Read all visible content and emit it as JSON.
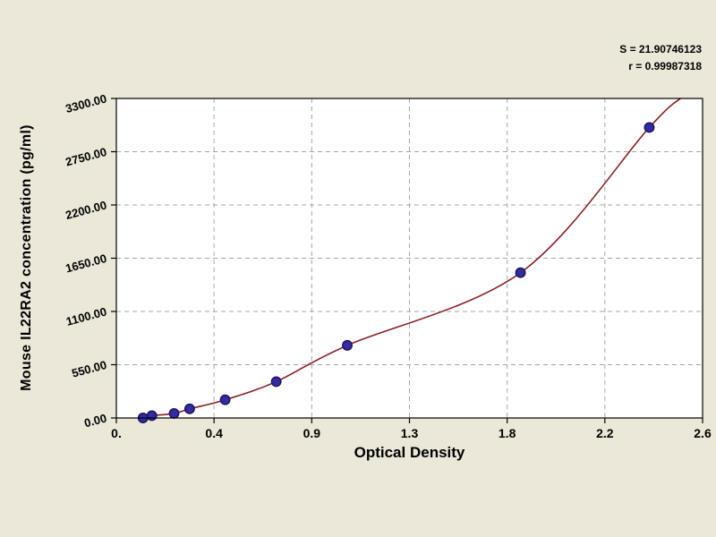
{
  "window": {
    "background_color": "#ebe8d9"
  },
  "chart_data": {
    "type": "scatter",
    "title": "",
    "xlabel": "Optical Density",
    "ylabel": "Mouse IL22RA2 concentration (pg/ml)",
    "annotations": {
      "s_value": "S = 21.90746123",
      "r_value": "r = 0.99987318"
    },
    "xlim": [
      0,
      2.64
    ],
    "ylim": [
      0,
      3300
    ],
    "x_ticks": [
      {
        "value": 0,
        "label": "0."
      },
      {
        "value": 0.44,
        "label": "0.4"
      },
      {
        "value": 0.88,
        "label": "0.9"
      },
      {
        "value": 1.32,
        "label": "1.3"
      },
      {
        "value": 1.76,
        "label": "1.8"
      },
      {
        "value": 2.2,
        "label": "2.2"
      },
      {
        "value": 2.64,
        "label": "2.6"
      }
    ],
    "y_ticks": [
      {
        "value": 0,
        "label": "0.00"
      },
      {
        "value": 550,
        "label": "550.00"
      },
      {
        "value": 1100,
        "label": "1100.00"
      },
      {
        "value": 1650,
        "label": "1650.00"
      },
      {
        "value": 2200,
        "label": "2200.00"
      },
      {
        "value": 2750,
        "label": "2750.00"
      },
      {
        "value": 3300,
        "label": "3300.00"
      }
    ],
    "series": [
      {
        "name": "standard-points",
        "points": [
          {
            "x": 0.12,
            "y": 0
          },
          {
            "x": 0.16,
            "y": 23.4
          },
          {
            "x": 0.26,
            "y": 46.9
          },
          {
            "x": 0.33,
            "y": 93.8
          },
          {
            "x": 0.49,
            "y": 187.5
          },
          {
            "x": 0.72,
            "y": 375
          },
          {
            "x": 1.04,
            "y": 750
          },
          {
            "x": 1.82,
            "y": 1500
          },
          {
            "x": 2.4,
            "y": 3000
          }
        ]
      }
    ],
    "fit_curve": {
      "start": {
        "x": 0.1,
        "y": 0
      },
      "end": {
        "x": 2.54,
        "y": 3300
      }
    },
    "grid": "dashed",
    "legend": "none",
    "colors": {
      "curve": "#8b1f24",
      "point_fill": "#342b9e",
      "point_stroke": "#1b1464",
      "grid_line": "#a8a8a0",
      "axis": "#000000",
      "plot_background": "#ffffff"
    }
  }
}
